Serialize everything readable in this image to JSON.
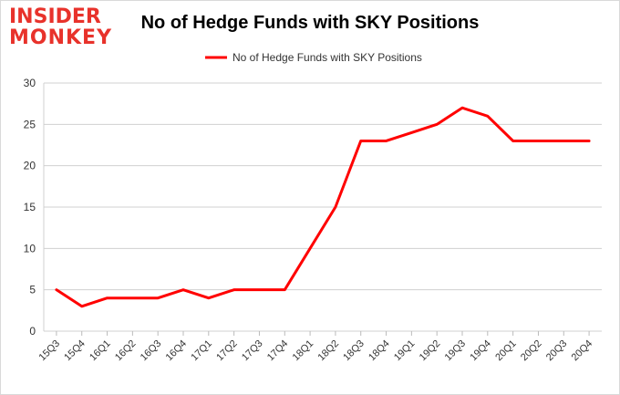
{
  "logo": {
    "line1": "INSIDER",
    "line2": "MONKEY",
    "brand_color": "#e8322b"
  },
  "chart_data": {
    "type": "line",
    "title": "No of Hedge Funds with SKY Positions",
    "xlabel": "",
    "ylabel": "",
    "categories": [
      "15Q3",
      "15Q4",
      "16Q1",
      "16Q2",
      "16Q3",
      "16Q4",
      "17Q1",
      "17Q2",
      "17Q3",
      "17Q4",
      "18Q1",
      "18Q2",
      "18Q3",
      "18Q4",
      "19Q1",
      "19Q2",
      "19Q3",
      "19Q4",
      "20Q1",
      "20Q2",
      "20Q3",
      "20Q4"
    ],
    "series": [
      {
        "name": "No of Hedge Funds with SKY Positions",
        "color": "#ff0000",
        "values": [
          5,
          3,
          4,
          4,
          4,
          5,
          4,
          5,
          5,
          5,
          10,
          15,
          23,
          23,
          24,
          25,
          27,
          26,
          23,
          23,
          23,
          23
        ]
      }
    ],
    "ylim": [
      0,
      30
    ],
    "yticks": [
      0,
      5,
      10,
      15,
      20,
      25,
      30
    ],
    "grid": true,
    "legend_position": "top-center"
  }
}
